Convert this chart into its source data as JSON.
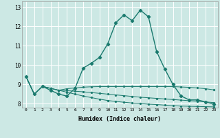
{
  "xlabel": "Humidex (Indice chaleur)",
  "bg_color": "#cce8e4",
  "line_color": "#1a7a6e",
  "grid_color": "#ffffff",
  "xlim": [
    -0.5,
    23.5
  ],
  "ylim": [
    7.8,
    13.3
  ],
  "yticks": [
    8,
    9,
    10,
    11,
    12,
    13
  ],
  "xticks": [
    0,
    1,
    2,
    3,
    4,
    5,
    6,
    7,
    8,
    9,
    10,
    11,
    12,
    13,
    14,
    15,
    16,
    17,
    18,
    19,
    20,
    21,
    22,
    23
  ],
  "xtick_labels": [
    "0",
    "1",
    "2",
    "3",
    "4",
    "5",
    "6",
    "7",
    "8",
    "9",
    "10",
    "11",
    "12",
    "13",
    "14",
    "15",
    "16",
    "17",
    "18",
    "19",
    "20",
    "21",
    "22",
    "23"
  ],
  "series0": [
    9.4,
    8.5,
    8.9,
    8.7,
    8.5,
    8.4,
    8.8,
    9.85,
    10.1,
    10.4,
    11.1,
    12.2,
    12.6,
    12.3,
    12.85,
    12.5,
    10.7,
    9.8,
    9.0,
    8.4,
    8.2,
    8.2,
    8.1,
    7.98
  ],
  "series1": [
    9.4,
    8.5,
    8.9,
    8.8,
    8.7,
    8.78,
    8.82,
    8.86,
    8.88,
    8.89,
    8.89,
    8.89,
    8.89,
    8.89,
    8.89,
    8.89,
    8.89,
    8.89,
    8.89,
    8.87,
    8.85,
    8.82,
    8.78,
    8.72
  ],
  "series2": [
    9.4,
    8.5,
    8.9,
    8.8,
    8.7,
    8.68,
    8.65,
    8.62,
    8.58,
    8.54,
    8.5,
    8.46,
    8.42,
    8.38,
    8.34,
    8.31,
    8.28,
    8.25,
    8.22,
    8.19,
    8.16,
    8.13,
    8.1,
    8.06
  ],
  "series3": [
    9.4,
    8.5,
    8.9,
    8.8,
    8.7,
    8.6,
    8.5,
    8.4,
    8.32,
    8.24,
    8.17,
    8.12,
    8.08,
    8.04,
    8.01,
    7.98,
    7.96,
    7.93,
    7.9,
    7.88,
    7.87,
    7.86,
    7.85,
    7.84
  ]
}
